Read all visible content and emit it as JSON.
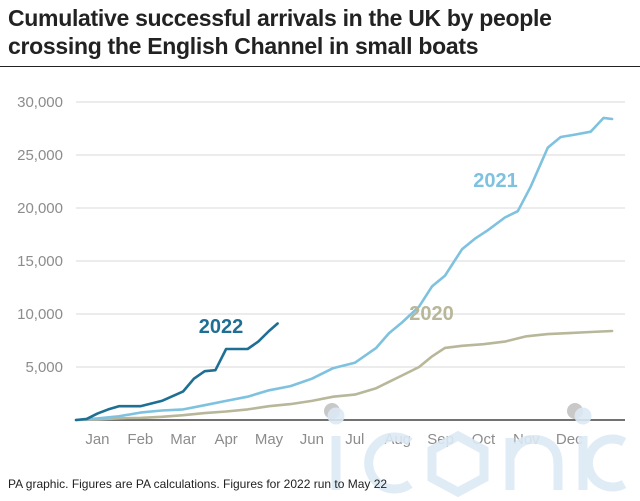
{
  "title": "Cumulative successful arrivals in the UK by people crossing the English Channel in small boats",
  "footnote": "PA graphic. Figures are PA calculations. Figures for 2022 run to May 22",
  "watermark": "iconic",
  "chart_data": {
    "type": "line",
    "title": "Cumulative successful arrivals in the UK by people crossing the English Channel in small boats",
    "xlabel": "",
    "ylabel": "",
    "categories": [
      "Jan",
      "Feb",
      "Mar",
      "Apr",
      "May",
      "Jun",
      "Jul",
      "Aug",
      "Sep",
      "Oct",
      "Nov",
      "Dec"
    ],
    "xlim": [
      0,
      12.8
    ],
    "ylim": [
      0,
      30000
    ],
    "yticks": [
      5000,
      10000,
      15000,
      20000,
      25000,
      30000
    ],
    "ytick_labels": [
      "5,000",
      "10,000",
      "15,000",
      "20,000",
      "25,000",
      "30,000"
    ],
    "grid": true,
    "series": [
      {
        "name": "2020",
        "color": "#b8b79a",
        "x": [
          0.0,
          1.0,
          1.5,
          2.0,
          2.5,
          3.0,
          3.5,
          4.0,
          4.5,
          5.0,
          5.5,
          6.0,
          6.5,
          7.0,
          7.3,
          7.6,
          8.0,
          8.3,
          8.6,
          9.0,
          9.5,
          10.0,
          10.5,
          11.0,
          11.5,
          12.0,
          12.5
        ],
        "y": [
          0,
          150,
          200,
          300,
          450,
          650,
          800,
          1000,
          1300,
          1500,
          1800,
          2200,
          2400,
          3000,
          3600,
          4200,
          5000,
          6000,
          6800,
          7000,
          7150,
          7400,
          7900,
          8100,
          8200,
          8300,
          8400
        ]
      },
      {
        "name": "2021",
        "color": "#7ec2df",
        "x": [
          0.0,
          0.5,
          1.0,
          1.5,
          2.0,
          2.5,
          3.0,
          3.5,
          4.0,
          4.5,
          5.0,
          5.5,
          6.0,
          6.5,
          7.0,
          7.3,
          7.6,
          8.0,
          8.3,
          8.6,
          9.0,
          9.3,
          9.6,
          10.0,
          10.3,
          10.6,
          11.0,
          11.3,
          11.6,
          12.0,
          12.3,
          12.5
        ],
        "y": [
          0,
          150,
          350,
          700,
          900,
          1000,
          1400,
          1800,
          2200,
          2800,
          3200,
          3900,
          4900,
          5400,
          6800,
          8200,
          9200,
          10700,
          12600,
          13600,
          16100,
          17100,
          17900,
          19100,
          19700,
          22000,
          25700,
          26700,
          26900,
          27200,
          28500,
          28400
        ]
      },
      {
        "name": "2022",
        "color": "#1f6f94",
        "x": [
          0.0,
          0.25,
          0.5,
          0.75,
          1.0,
          1.5,
          2.0,
          2.5,
          2.75,
          3.0,
          3.25,
          3.5,
          4.0,
          4.25,
          4.5,
          4.7
        ],
        "y": [
          0,
          100,
          600,
          1000,
          1300,
          1300,
          1800,
          2700,
          3900,
          4600,
          4700,
          6700,
          6700,
          7400,
          8400,
          9100
        ]
      }
    ],
    "legend": "inline labels"
  }
}
